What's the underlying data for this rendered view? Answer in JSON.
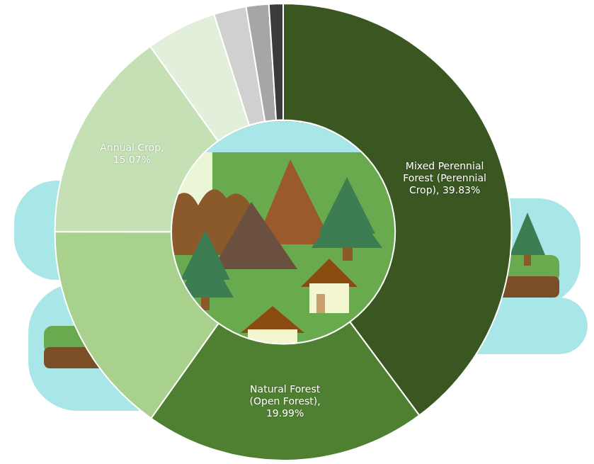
{
  "chart_data": {
    "type": "doughnut",
    "categories": [
      "Mixed Perennial Forest (Perennial Crop)",
      "Natural Forest (Open Forest)",
      null,
      "Annual Crop",
      null,
      null,
      null,
      null
    ],
    "values": [
      39.83,
      19.99,
      15.21,
      15.07,
      5.0,
      2.3,
      1.6,
      1.0
    ],
    "value_labels": [
      "Mixed Perennial Forest (Perennial Crop), 39.83%",
      "Natural Forest (Open Forest), 19.99%",
      null,
      "Annual Crop, 15.07%",
      null,
      null,
      null,
      null
    ],
    "colors": [
      "#3a5621",
      "#4f7f31",
      "#a9d18e",
      "#c5e0b4",
      "#e2efda",
      "#d0d0d0",
      "#a6a6a6",
      "#3b3b3b"
    ],
    "data_labels": true
  }
}
